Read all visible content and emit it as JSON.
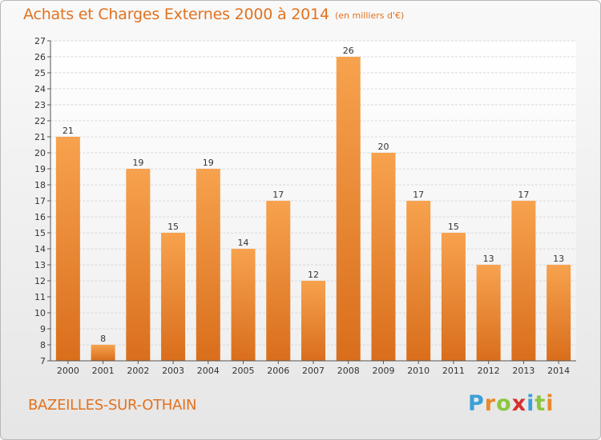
{
  "header": {
    "title": "Achats et Charges Externes 2000 à 2014",
    "unit": "(en milliers d'€)"
  },
  "footer": {
    "commune": "BAZEILLES-SUR-OTHAIN",
    "logo": "Proxiti"
  },
  "colors": {
    "bar_light": "#f7a24e",
    "bar_dark": "#d96e1c",
    "title": "#e2721f",
    "axis": "#555555",
    "grid": "#d9d9d9"
  },
  "chart_data": {
    "type": "bar",
    "title": "Achats et Charges Externes 2000 à 2014",
    "xlabel": "",
    "ylabel": "",
    "categories": [
      "2000",
      "2001",
      "2002",
      "2003",
      "2004",
      "2005",
      "2006",
      "2007",
      "2008",
      "2009",
      "2010",
      "2011",
      "2012",
      "2013",
      "2014"
    ],
    "values": [
      21,
      8,
      19,
      15,
      19,
      14,
      17,
      12,
      26,
      20,
      17,
      15,
      13,
      17,
      13
    ],
    "ylim": [
      7,
      27
    ],
    "yticks": [
      7,
      8,
      9,
      10,
      11,
      12,
      13,
      14,
      15,
      16,
      17,
      18,
      19,
      20,
      21,
      22,
      23,
      24,
      25,
      26,
      27
    ],
    "grid": true,
    "data_labels": true
  }
}
